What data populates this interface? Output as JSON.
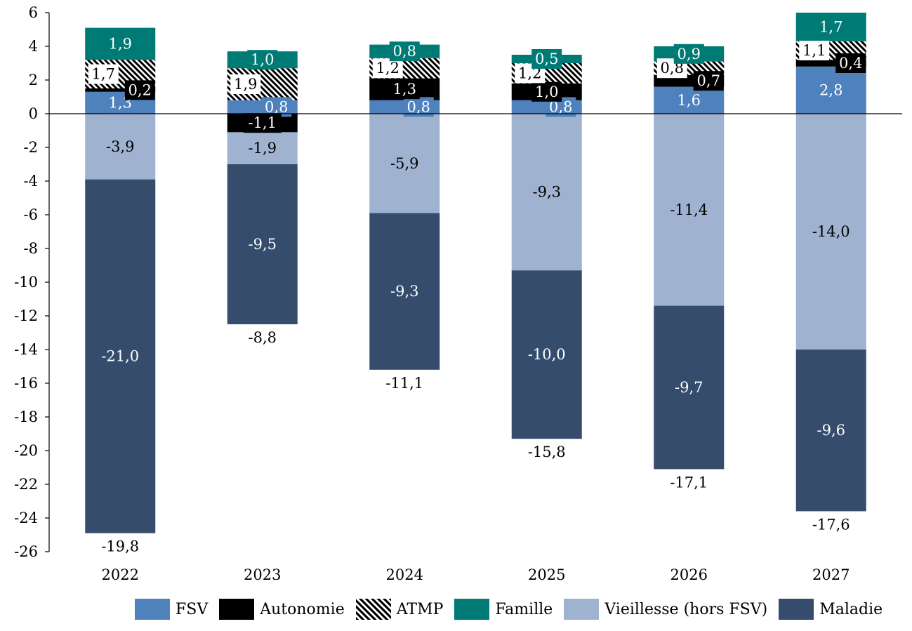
{
  "chart_data": {
    "type": "bar",
    "stacked": true,
    "categories": [
      "2022",
      "2023",
      "2024",
      "2025",
      "2026",
      "2027"
    ],
    "ylim": [
      -26,
      6
    ],
    "yticks": [
      "-26",
      "-24",
      "-22",
      "-20",
      "-18",
      "-16",
      "-14",
      "-12",
      "-10",
      "-8",
      "-6",
      "-4",
      "-2",
      "0",
      "2",
      "4",
      "6"
    ],
    "series": [
      {
        "name": "FSV",
        "color": "#4f81bd",
        "values": [
          1.3,
          0.8,
          0.8,
          0.8,
          1.6,
          2.8
        ],
        "labels": [
          "1,3",
          "0,8",
          "0,8",
          "0,8",
          "1,6",
          "2,8"
        ]
      },
      {
        "name": "Autonomie",
        "color": "#000000",
        "values": [
          0.2,
          -1.1,
          1.3,
          1.0,
          0.7,
          0.4
        ],
        "labels": [
          "0,2",
          "-1,1",
          "1,3",
          "1,0",
          "0,7",
          "0,4"
        ]
      },
      {
        "name": "ATMP",
        "color": "#000000",
        "pattern": "hatch",
        "values": [
          1.7,
          1.9,
          1.2,
          1.2,
          0.8,
          1.1
        ],
        "labels": [
          "1,7",
          "1,9",
          "1,2",
          "1,2",
          "0,8",
          "1,1"
        ]
      },
      {
        "name": "Famille",
        "color": "#007a74",
        "values": [
          1.9,
          1.0,
          0.8,
          0.5,
          0.9,
          1.7
        ],
        "labels": [
          "1,9",
          "1,0",
          "0,8",
          "0,5",
          "0,9",
          "1,7"
        ]
      },
      {
        "name": "Vieillesse (hors FSV)",
        "color": "#9fb2d0",
        "values": [
          -3.9,
          -1.9,
          -5.9,
          -9.3,
          -11.4,
          -14.0
        ],
        "labels": [
          "-3,9",
          "-1,9",
          "-5,9",
          "-9,3",
          "-11,4",
          "-14,0"
        ]
      },
      {
        "name": "Maladie",
        "color": "#364c6c",
        "values": [
          -21.0,
          -9.5,
          -9.3,
          -10.0,
          -9.7,
          -9.6
        ],
        "labels": [
          "-21,0",
          "-9,5",
          "-9,3",
          "-10,0",
          "-9,7",
          "-9,6"
        ]
      }
    ],
    "totals": [
      -19.8,
      -8.8,
      -11.1,
      -15.8,
      -17.1,
      -17.6
    ],
    "total_labels": [
      "-19,8",
      "-8,8",
      "-11,1",
      "-15,8",
      "-17,1",
      "-17,6"
    ],
    "legend_position": "bottom"
  }
}
